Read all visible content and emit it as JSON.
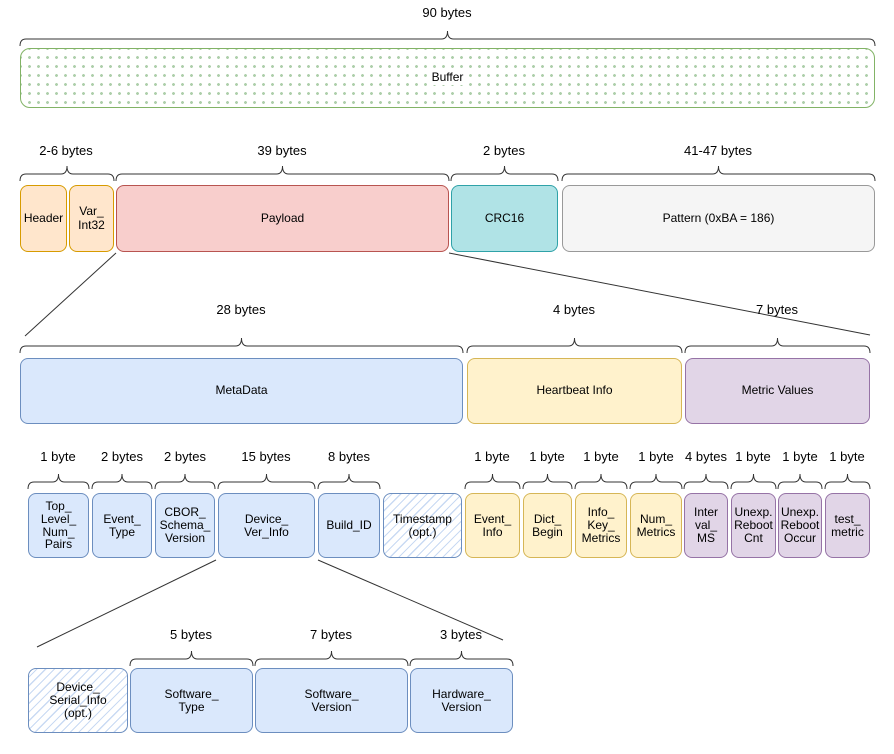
{
  "palette": {
    "green_border": "#82B366",
    "green_dot": "#AECFAB",
    "orange_fill": "#FFE6CC",
    "orange_border": "#D79B00",
    "red_fill": "#F8CECC",
    "red_border": "#B85450",
    "teal_fill": "#B0E3E6",
    "teal_border": "#2FA2A8",
    "gray_fill": "#F5F5F5",
    "gray_border": "#999999",
    "blue_fill": "#DAE8FC",
    "blue_border": "#6C8EBF",
    "yellow_fill": "#FFF2CC",
    "yellow_border": "#D6B656",
    "purple_fill": "#E1D5E7",
    "purple_border": "#9673A6",
    "hatch_line": "#C9DAF3",
    "line_stroke": "#333333"
  },
  "buffer": {
    "size": "90 bytes",
    "label": "Buffer"
  },
  "frame": {
    "sizes": [
      "2-6 bytes",
      "39 bytes",
      "2 bytes",
      "41-47 bytes"
    ],
    "boxes": [
      "Header",
      "Var_\nInt32",
      "Payload",
      "CRC16",
      "Pattern (0xBA = 186)"
    ]
  },
  "payload_detail": {
    "sizes": [
      "28 bytes",
      "4 bytes",
      "7 bytes"
    ],
    "boxes": [
      "MetaData",
      "Heartbeat Info",
      "Metric Values"
    ]
  },
  "fields": {
    "sizes": [
      "1 byte",
      "2 bytes",
      "2 bytes",
      "15 bytes",
      "8 bytes",
      "1 byte",
      "1 byte",
      "1 byte",
      "1 byte",
      "4 bytes",
      "1 byte",
      "1 byte",
      "1 byte"
    ],
    "boxes": [
      "Top_\nLevel_\nNum_\nPairs",
      "Event_\nType",
      "CBOR_\nSchema_\nVersion",
      "Device_\nVer_Info",
      "Build_ID",
      "Timestamp\n(opt.)",
      "Event_\nInfo",
      "Dict_\nBegin",
      "Info_\nKey_\nMetrics",
      "Num_\nMetrics",
      "Inter\nval_\nMS",
      "Unexp.\nReboot\nCnt",
      "Unexp.\nReboot\nOccur",
      "test_\nmetric"
    ]
  },
  "device_ver_detail": {
    "sizes": [
      "5 bytes",
      "7 bytes",
      "3 bytes"
    ],
    "boxes": [
      "Device_\nSerial_Info\n(opt.)",
      "Software_\nType",
      "Software_\nVersion",
      "Hardware_\nVersion"
    ]
  }
}
